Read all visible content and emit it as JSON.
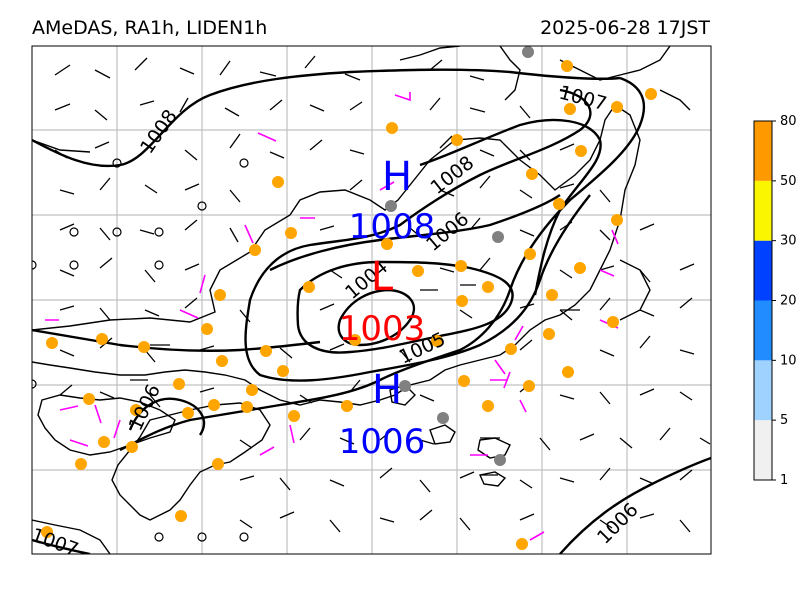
{
  "header": {
    "left": "AMeDAS, RA1h, LIDEN1h",
    "right": "2025-06-28 17JST"
  },
  "isobars": {
    "labels": [
      "1008",
      "1007",
      "1008",
      "1006",
      "1004",
      "1005",
      "1006",
      "1007",
      "1006"
    ]
  },
  "pressure_centers": [
    {
      "kind": "H",
      "value": "1008",
      "color": "#0000ff"
    },
    {
      "kind": "L",
      "value": "1003",
      "color": "#ff0000"
    },
    {
      "kind": "H",
      "value": "1006",
      "color": "#0000ff"
    }
  ],
  "colorbar": {
    "ticks": [
      "1",
      "5",
      "10",
      "20",
      "30",
      "50",
      "80"
    ],
    "colors": [
      "#f0f0f0",
      "#a0d2ff",
      "#218cff",
      "#0041ff",
      "#faf500",
      "#ff9900"
    ]
  },
  "colors": {
    "station_rain": "#ffa500",
    "station_gray": "#808080",
    "strong_wind": "#ff00ff",
    "grid": "#c0c0c0"
  }
}
